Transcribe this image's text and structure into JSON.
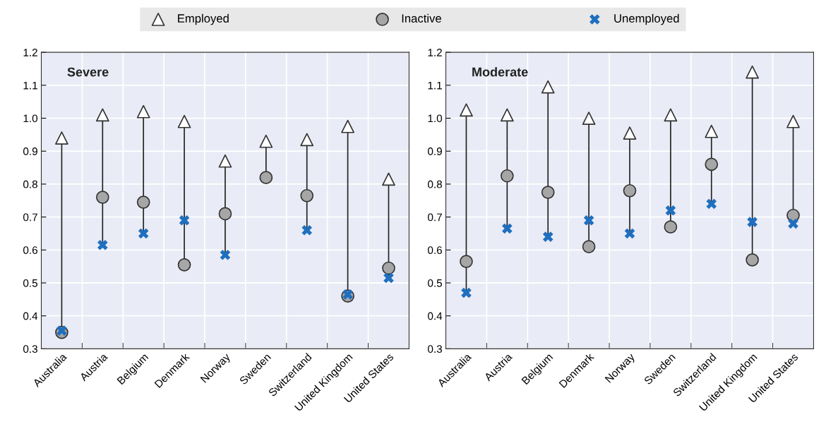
{
  "chart_data": [
    {
      "type": "scatter",
      "title": "Severe",
      "categories": [
        "Australia",
        "Austria",
        "Belgium",
        "Denmark",
        "Norway",
        "Sweden",
        "Switzerland",
        "United Kingdom",
        "United States"
      ],
      "series": [
        {
          "name": "Employed",
          "color": "#ffffff",
          "marker": "triangle",
          "values": [
            0.94,
            1.01,
            1.02,
            0.99,
            0.87,
            0.93,
            0.935,
            0.975,
            0.815
          ]
        },
        {
          "name": "Inactive",
          "color": "#a6a6a6",
          "marker": "circle",
          "values": [
            0.35,
            0.76,
            0.745,
            0.555,
            0.71,
            0.82,
            0.765,
            0.46,
            0.545
          ]
        },
        {
          "name": "Unemployed",
          "color": "#1f6fbf",
          "marker": "cross",
          "values": [
            0.355,
            0.615,
            0.65,
            0.69,
            0.585,
            null,
            0.66,
            0.465,
            0.515
          ]
        }
      ],
      "ylim": [
        0.3,
        1.2
      ],
      "yticks": [
        {
          "value": 0.3,
          "label": "0.3"
        },
        {
          "value": 0.4,
          "label": "0.4"
        },
        {
          "value": 0.5,
          "label": "0.5"
        },
        {
          "value": 0.6,
          "label": "0.6"
        },
        {
          "value": 0.7,
          "label": "0.7"
        },
        {
          "value": 0.8,
          "label": "0.8"
        },
        {
          "value": 0.9,
          "label": "0.9"
        },
        {
          "value": 1.0,
          "label": "1.0"
        },
        {
          "value": 1.1,
          "label": "1.1"
        },
        {
          "value": 1.2,
          "label": "1.2"
        }
      ],
      "grid": true,
      "legend": "top"
    },
    {
      "type": "scatter",
      "title": "Moderate",
      "categories": [
        "Australia",
        "Austria",
        "Belgium",
        "Denmark",
        "Norway",
        "Sweden",
        "Switzerland",
        "United Kingdom",
        "United States"
      ],
      "series": [
        {
          "color": "#ffffff",
          "marker": "triangle",
          "values": [
            1.025,
            1.01,
            1.095,
            1.0,
            0.955,
            1.01,
            0.96,
            1.14,
            0.99
          ]
        },
        {
          "color": "#a6a6a6",
          "marker": "circle",
          "values": [
            0.565,
            0.825,
            0.775,
            0.61,
            0.78,
            0.67,
            0.86,
            0.57,
            0.705
          ]
        },
        {
          "color": "#1f6fbf",
          "marker": "cross",
          "values": [
            0.47,
            0.665,
            0.64,
            0.69,
            0.65,
            0.72,
            0.74,
            0.685,
            0.68
          ]
        }
      ],
      "ylim": [
        0.3,
        1.2
      ],
      "yticks": [
        {
          "value": 0.3,
          "label": "0.3"
        },
        {
          "value": 0.4,
          "label": "0.4"
        },
        {
          "value": 0.5,
          "label": "0.5"
        },
        {
          "value": 0.6,
          "label": "0.6"
        },
        {
          "value": 0.7,
          "label": "0.7"
        },
        {
          "value": 0.8,
          "label": "0.8"
        },
        {
          "value": 0.9,
          "label": "0.9"
        },
        {
          "value": 1.0,
          "label": "1.0"
        },
        {
          "value": 1.1,
          "label": "1.1"
        },
        {
          "value": 1.2,
          "label": "1.2"
        }
      ],
      "grid": true
    }
  ]
}
